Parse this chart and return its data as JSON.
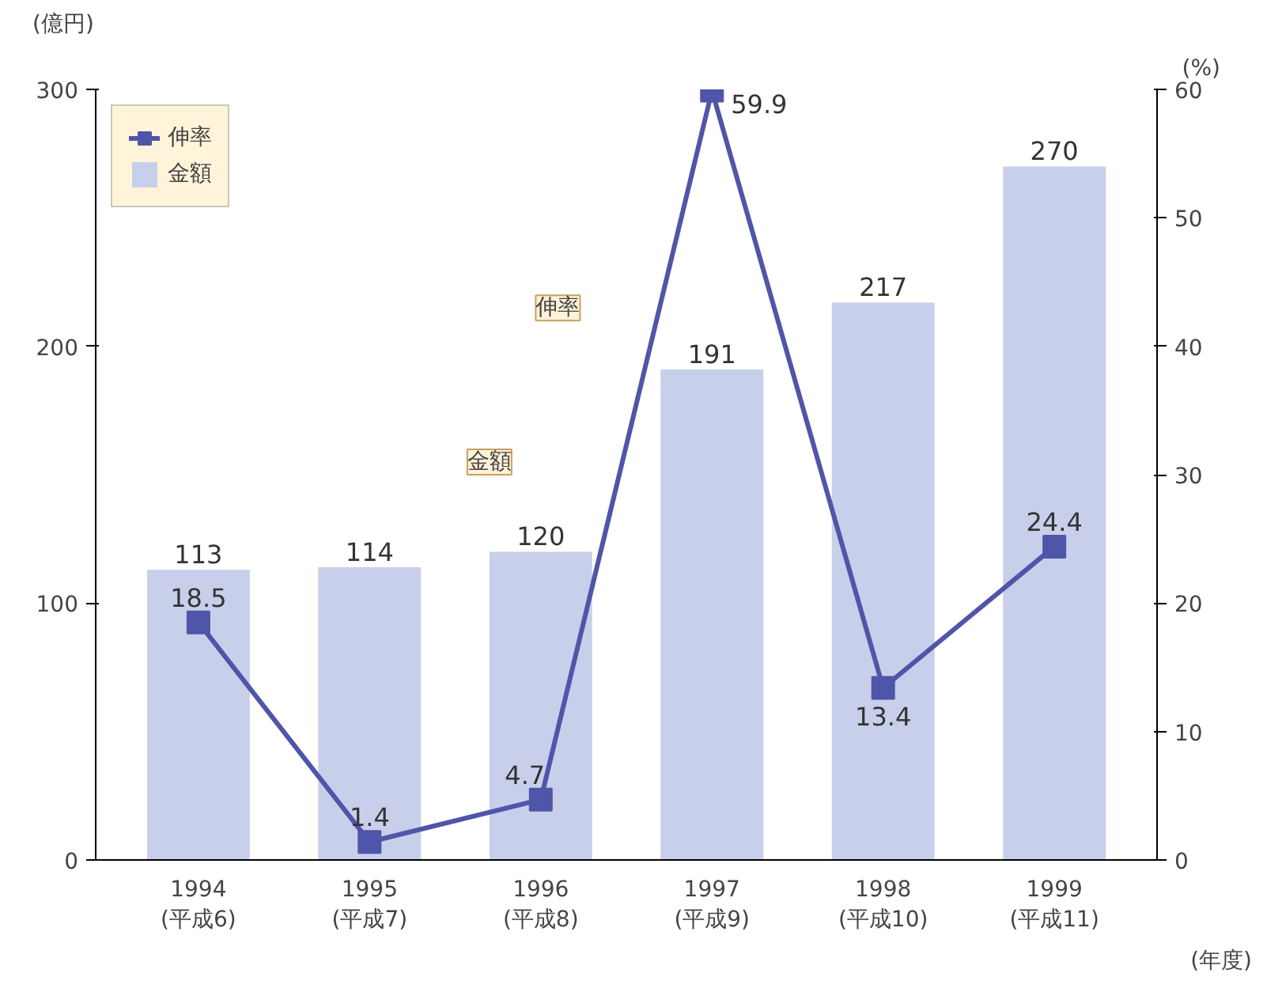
{
  "chart_data": {
    "type": "bar",
    "categories": [
      "1994\n(平成6)",
      "1995\n(平成7)",
      "1996\n(平成8)",
      "1997\n(平成9)",
      "1998\n(平成10)",
      "1999\n(平成11)"
    ],
    "series": [
      {
        "name": "金額",
        "color": "#c8cfea",
        "values": [
          113,
          114,
          120,
          191,
          217,
          270
        ]
      },
      {
        "name": "伸率",
        "type": "line",
        "axis": "y2",
        "color": "#4f55a8",
        "marker": "square",
        "values": [
          18.5,
          1.4,
          4.7,
          59.9,
          13.4,
          24.4
        ]
      }
    ],
    "ylabel": "(億円)",
    "y2label": "(%)",
    "xlabel": "(年度)",
    "ylim": [
      0,
      300
    ],
    "yticks": [
      0,
      100,
      200,
      300
    ],
    "y2lim": [
      0,
      60
    ],
    "y2ticks": [
      0,
      10,
      20,
      30,
      40,
      50,
      60
    ],
    "data_labels": true,
    "grid": false,
    "legend": "top left",
    "annotations": [
      "伸率",
      "金額"
    ]
  }
}
